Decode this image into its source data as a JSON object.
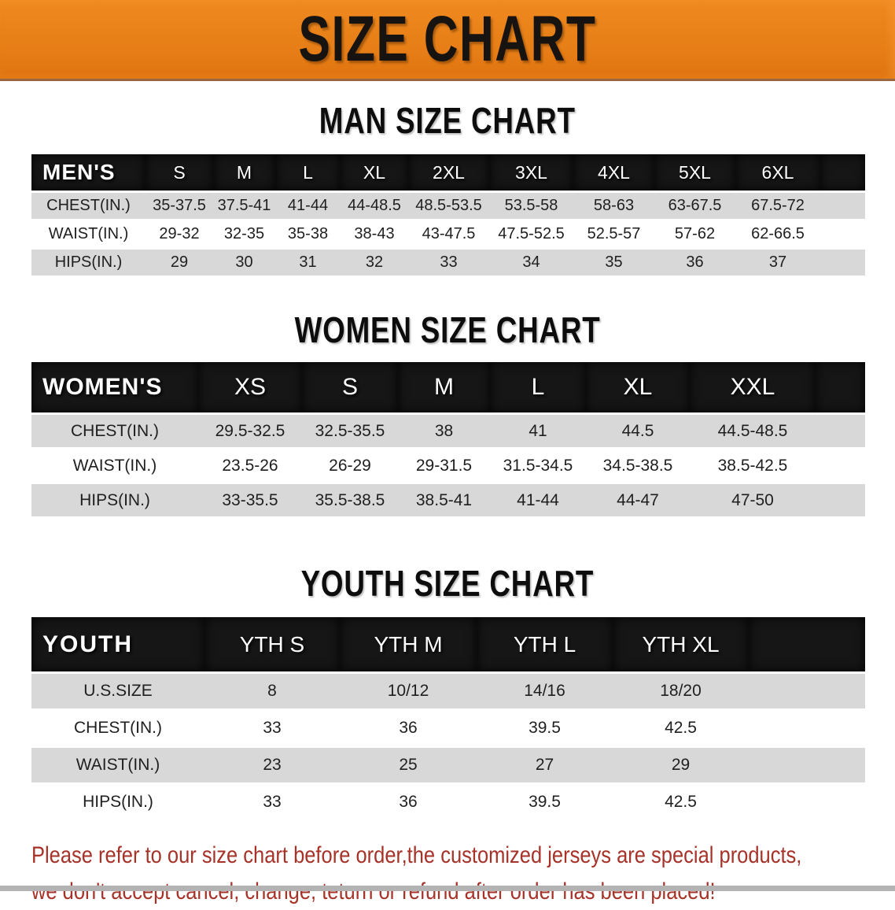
{
  "banner": {
    "title": "SIZE CHART"
  },
  "colors": {
    "banner_orange": "#E67C15",
    "header_black": "#161616",
    "row_gray": "#D8D8D8",
    "footer_red": "#A63228"
  },
  "sections": {
    "men": {
      "title": "MAN SIZE CHART"
    },
    "women": {
      "title": "WOMEN SIZE CHART"
    },
    "youth": {
      "title": "YOUTH SIZE CHART"
    }
  },
  "tables": {
    "men": {
      "label": "MEN'S",
      "sizes": [
        "S",
        "M",
        "L",
        "XL",
        "2XL",
        "3XL",
        "4XL",
        "5XL",
        "6XL"
      ],
      "rows": [
        {
          "label": "CHEST(IN.)",
          "values": [
            "35-37.5",
            "37.5-41",
            "41-44",
            "44-48.5",
            "48.5-53.5",
            "53.5-58",
            "58-63",
            "63-67.5",
            "67.5-72"
          ]
        },
        {
          "label": "WAIST(IN.)",
          "values": [
            "29-32",
            "32-35",
            "35-38",
            "38-43",
            "43-47.5",
            "47.5-52.5",
            "52.5-57",
            "57-62",
            "62-66.5"
          ]
        },
        {
          "label": "HIPS(IN.)",
          "values": [
            "29",
            "30",
            "31",
            "32",
            "33",
            "34",
            "35",
            "36",
            "37"
          ]
        }
      ]
    },
    "women": {
      "label": "WOMEN'S",
      "sizes": [
        "XS",
        "S",
        "M",
        "L",
        "XL",
        "XXL"
      ],
      "rows": [
        {
          "label": "CHEST(IN.)",
          "values": [
            "29.5-32.5",
            "32.5-35.5",
            "38",
            "41",
            "44.5",
            "44.5-48.5"
          ]
        },
        {
          "label": "WAIST(IN.)",
          "values": [
            "23.5-26",
            "26-29",
            "29-31.5",
            "31.5-34.5",
            "34.5-38.5",
            "38.5-42.5"
          ]
        },
        {
          "label": "HIPS(IN.)",
          "values": [
            "33-35.5",
            "35.5-38.5",
            "38.5-41",
            "41-44",
            "44-47",
            "47-50"
          ]
        }
      ]
    },
    "youth": {
      "label": "YOUTH",
      "sizes": [
        "YTH S",
        "YTH M",
        "YTH L",
        "YTH XL"
      ],
      "rows": [
        {
          "label": "U.S.SIZE",
          "values": [
            "8",
            "10/12",
            "14/16",
            "18/20"
          ]
        },
        {
          "label": "CHEST(IN.)",
          "values": [
            "33",
            "36",
            "39.5",
            "42.5"
          ]
        },
        {
          "label": "WAIST(IN.)",
          "values": [
            "23",
            "25",
            "27",
            "29"
          ]
        },
        {
          "label": "HIPS(IN.)",
          "values": [
            "33",
            "36",
            "39.5",
            "42.5"
          ]
        }
      ]
    }
  },
  "footer": {
    "line1": "Please refer to our size chart before order,the customized jerseys are special products,",
    "line2": "we don't accept cancel, change, teturn or refund after order has been placed!"
  }
}
